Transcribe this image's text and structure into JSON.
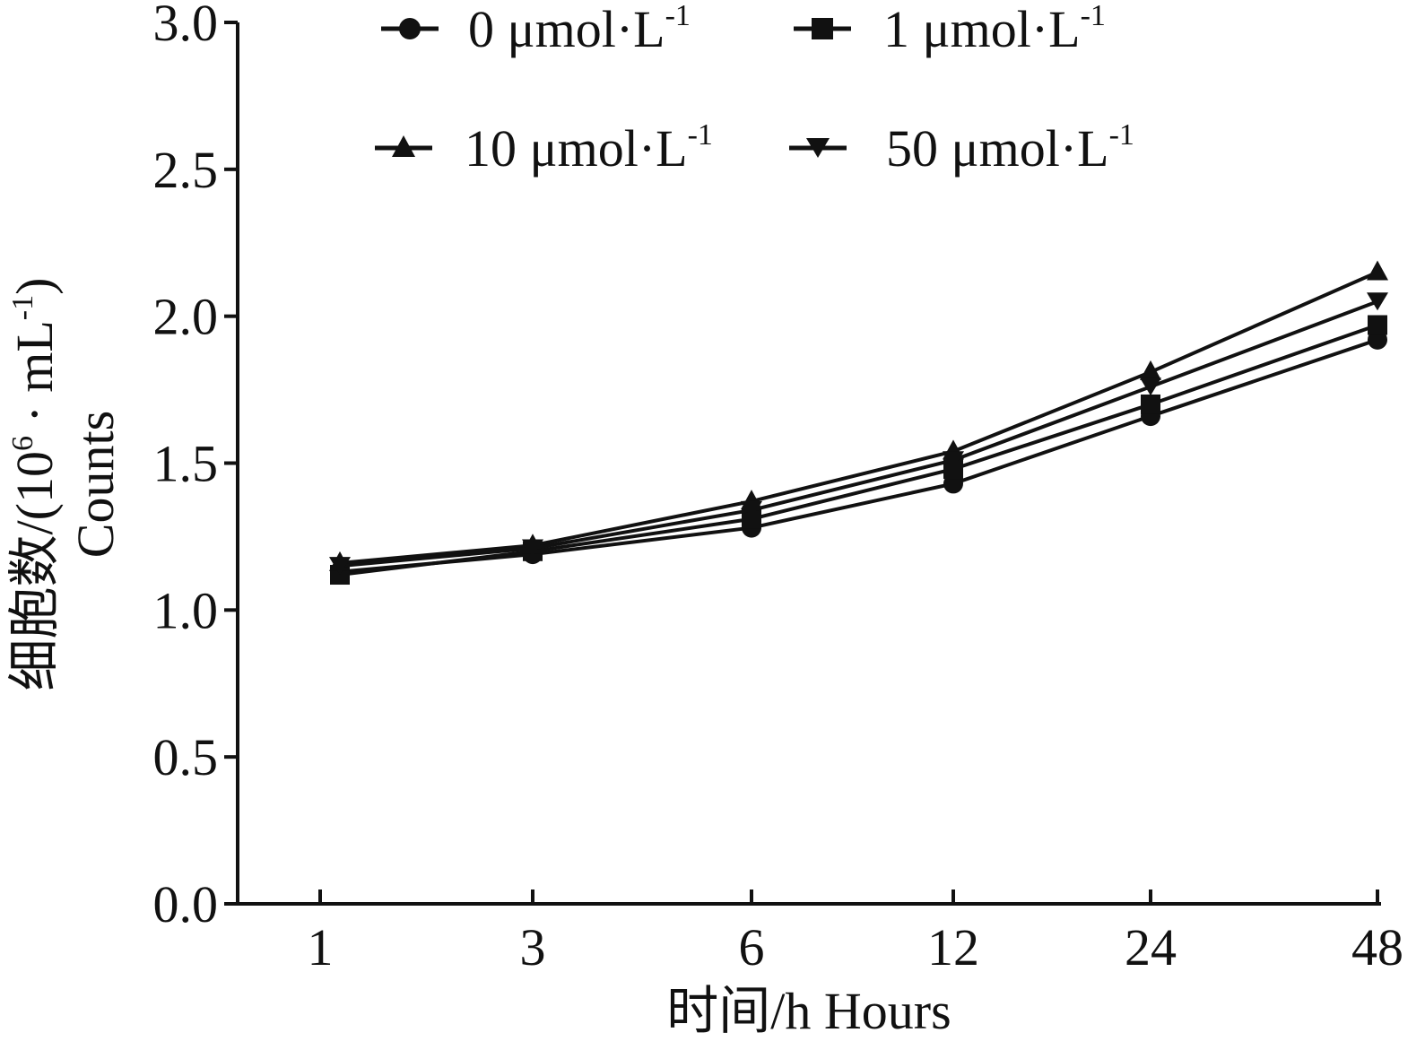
{
  "chart_data": {
    "type": "line",
    "x": [
      "1",
      "3",
      "6",
      "12",
      "24",
      "48"
    ],
    "series": [
      {
        "name": "0 μmol·L-1",
        "marker": "circle",
        "values": [
          1.13,
          1.19,
          1.28,
          1.43,
          1.66,
          1.92
        ]
      },
      {
        "name": "1 μmol·L-1",
        "marker": "square",
        "values": [
          1.12,
          1.2,
          1.31,
          1.48,
          1.7,
          1.97
        ]
      },
      {
        "name": "10 μmol·L-1",
        "marker": "triangle-up",
        "values": [
          1.16,
          1.22,
          1.37,
          1.54,
          1.81,
          2.15
        ]
      },
      {
        "name": "50 μmol·L-1",
        "marker": "triangle-down",
        "values": [
          1.15,
          1.21,
          1.34,
          1.51,
          1.76,
          2.05
        ]
      }
    ],
    "legend": [
      {
        "value": "0",
        "unit": "μmol·L",
        "exp": "-1"
      },
      {
        "value": "1",
        "unit": "μmol·L",
        "exp": "-1"
      },
      {
        "value": "10",
        "unit": "μmol·L",
        "exp": "-1"
      },
      {
        "value": "50",
        "unit": "μmol·L",
        "exp": "-1"
      }
    ],
    "xlabel": "时间/h  Hours",
    "ylabel": {
      "line1_prefix": "细胞数/(10",
      "line1_exp1": "6",
      "line1_mid": " · mL",
      "line1_exp2": "-1",
      "line1_suffix": ")",
      "line2": "Counts"
    },
    "yticks": [
      "0.0",
      "0.5",
      "1.0",
      "1.5",
      "2.0",
      "2.5",
      "3.0"
    ],
    "ylim": [
      0,
      3.0
    ],
    "legend_position": "top",
    "grid": false,
    "line_color": "#111111"
  }
}
